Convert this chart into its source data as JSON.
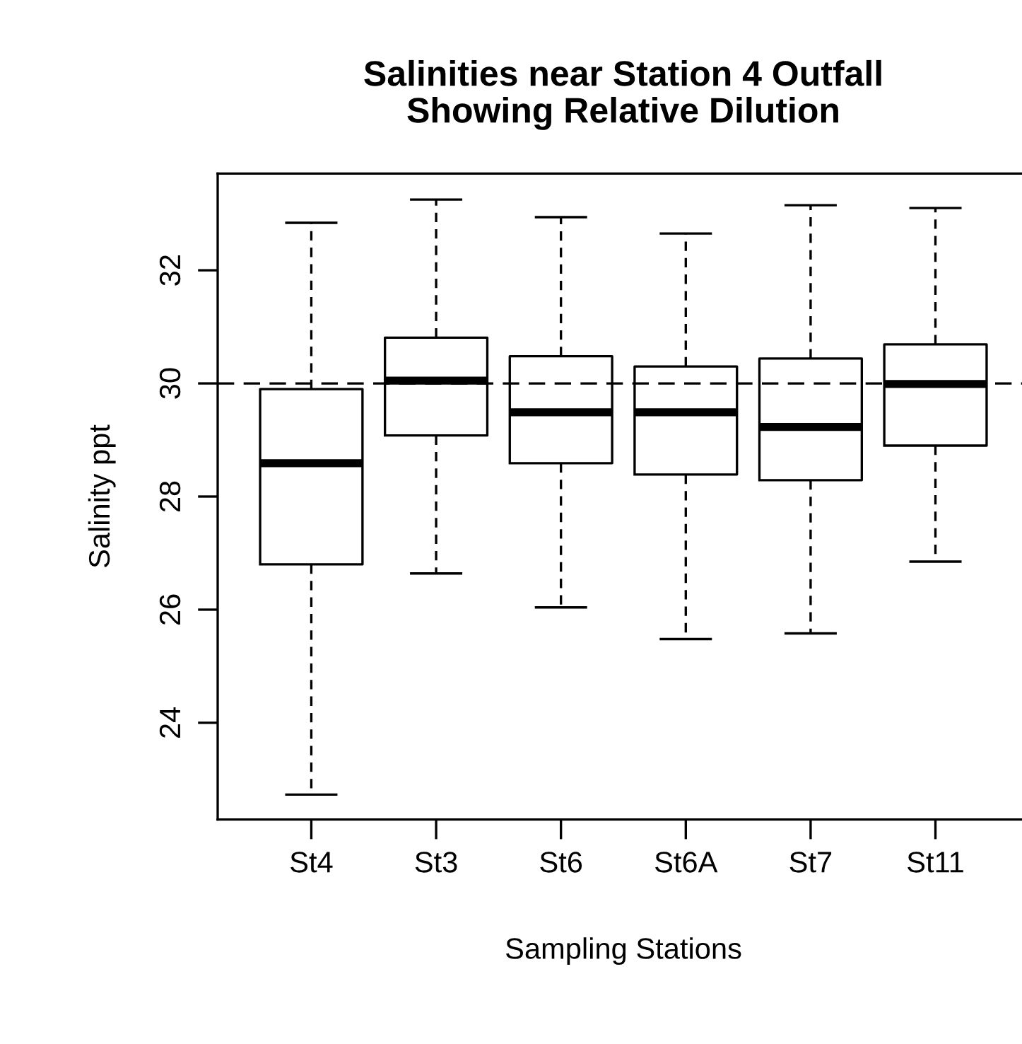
{
  "chart_data": {
    "type": "box",
    "title": "Salinities near Station 4 Outfall\nShowing Relative Dilution",
    "xlabel": "Sampling Stations",
    "ylabel": "Salinity ppt",
    "categories": [
      "St4",
      "St3",
      "St6",
      "St6A",
      "St7",
      "St11"
    ],
    "boxes": [
      {
        "low": 22.73,
        "q1": 26.8,
        "median": 28.59,
        "q3": 29.9,
        "high": 32.84
      },
      {
        "low": 26.64,
        "q1": 29.08,
        "median": 30.05,
        "q3": 30.81,
        "high": 33.25
      },
      {
        "low": 26.04,
        "q1": 28.59,
        "median": 29.49,
        "q3": 30.48,
        "high": 32.94
      },
      {
        "low": 25.48,
        "q1": 28.39,
        "median": 29.49,
        "q3": 30.3,
        "high": 32.65
      },
      {
        "low": 25.58,
        "q1": 28.29,
        "median": 29.23,
        "q3": 30.44,
        "high": 33.15
      },
      {
        "low": 26.85,
        "q1": 28.9,
        "median": 29.99,
        "q3": 30.69,
        "high": 33.1
      }
    ],
    "ylim": [
      22.29,
      33.71
    ],
    "yticks": [
      24,
      26,
      28,
      30,
      32
    ],
    "ref_lines": [
      {
        "axis": "y",
        "value": 30,
        "line_style": "dashed",
        "color": "#000000"
      }
    ],
    "grid": false,
    "legend": false
  }
}
